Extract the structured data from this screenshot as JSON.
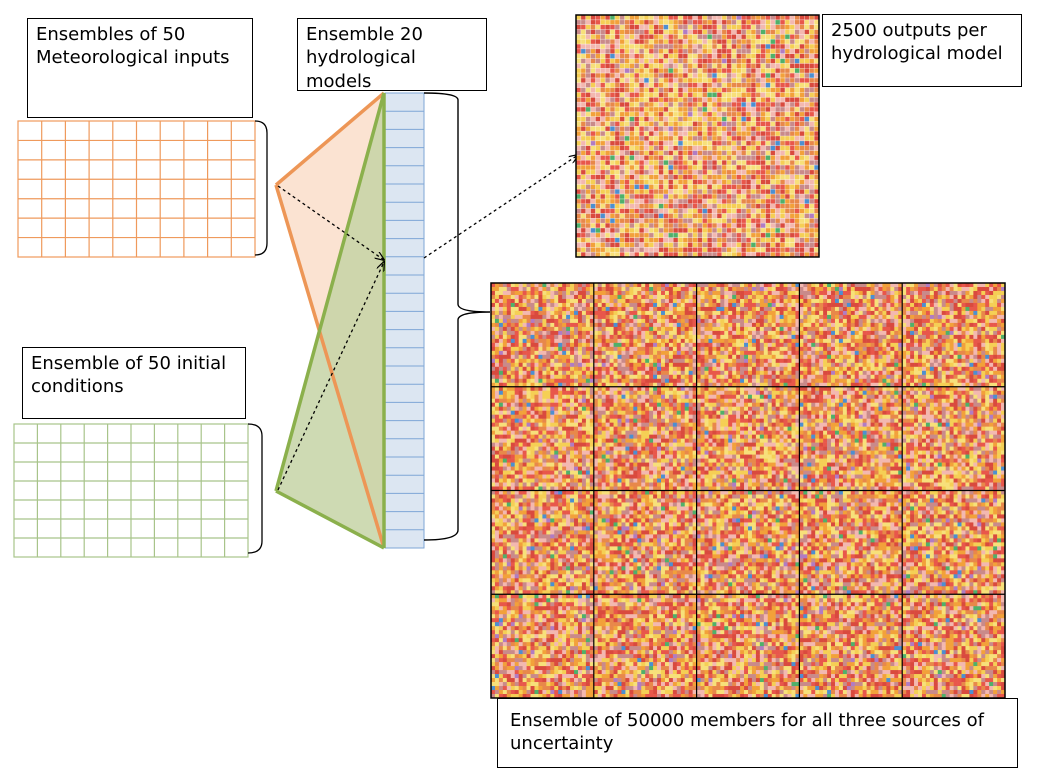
{
  "labels": {
    "met_inputs": "Ensembles of 50 Meteorological inputs",
    "initial_conditions": "Ensemble of 50 initial conditions",
    "hydro_models": "Ensemble 20 hydrological models",
    "outputs_per_model": "2500 outputs per hydrological model",
    "full_ensemble": "Ensemble of 50000 members for all three sources of uncertainty"
  },
  "colors": {
    "met_grid": "#ef9a5c",
    "met_triangle_fill": "#fbe3d2",
    "init_grid": "#a8c48a",
    "init_triangle_fill": "#c6d4a6",
    "orange_line": "#ed9656",
    "green_line": "#8bb04c",
    "column_fill": "#dce6f2",
    "column_lines": "#7ea6d6",
    "matrix_palette": [
      "#f2a13a",
      "#e8574b",
      "#f5cf55",
      "#f3b8b0",
      "#e8884a",
      "#d94a3e",
      "#f7e07a",
      "#c98a8a",
      "#4c8fd1",
      "#4fb06a",
      "#b07cc4"
    ]
  }
}
